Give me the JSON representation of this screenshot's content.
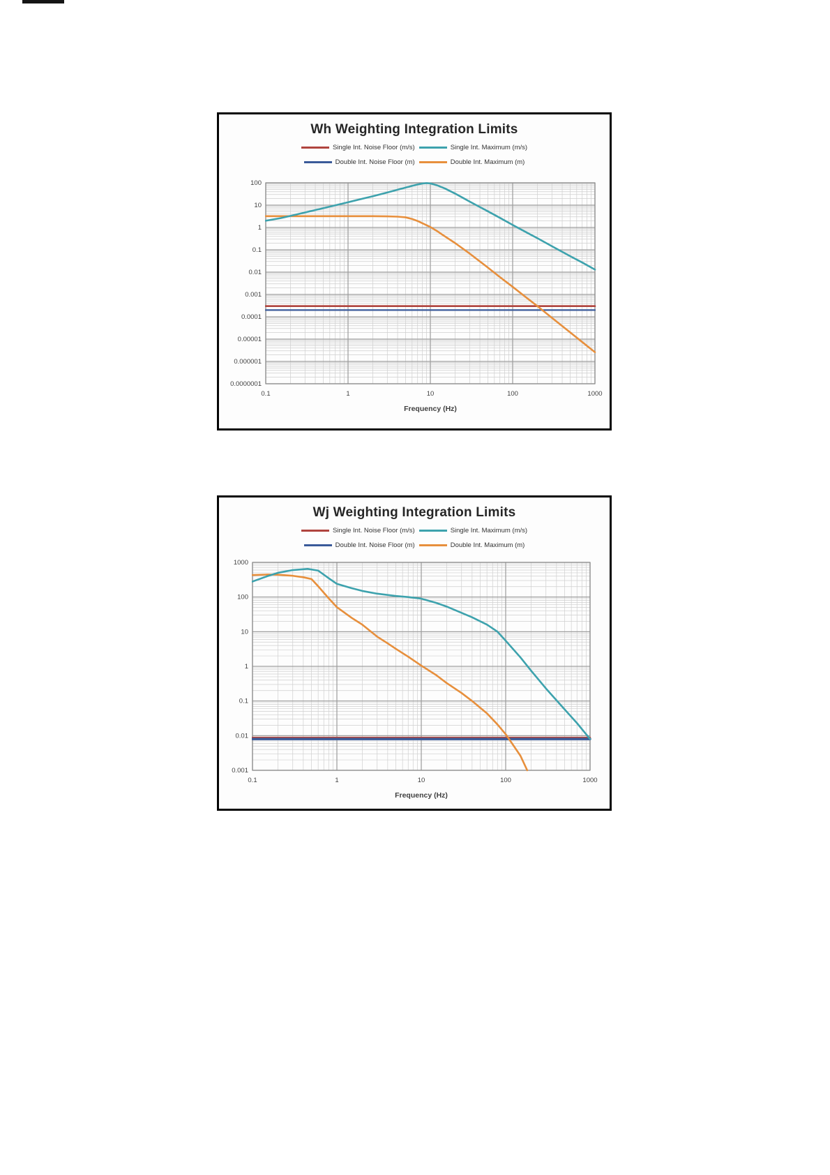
{
  "colors": {
    "single_noise": "#b0443e",
    "single_max": "#3da2ad",
    "double_noise": "#3a5a99",
    "double_max": "#e78f3c",
    "grid_minor": "#cfcfcf",
    "grid_major": "#9e9e9e",
    "plot_border": "#8a8a8a",
    "title_text": "#262626",
    "tick_text": "#3f3f3f"
  },
  "chart_data": [
    {
      "type": "line",
      "title": "Wh Weighting Integration Limits",
      "xlabel": "Frequency (Hz)",
      "xlim": [
        0.1,
        1000
      ],
      "ylim": [
        1e-07,
        100
      ],
      "x_ticks": [
        "0.1",
        "1",
        "10",
        "100",
        "1000"
      ],
      "y_ticks": [
        "100",
        "10",
        "1",
        "0.1",
        "0.01",
        "0.001",
        "0.0001",
        "0.00001",
        "0.000001",
        "0.0000001"
      ],
      "grid": "log-log, minor decades shown",
      "legend_position": "top-center, two rows",
      "legend": [
        {
          "label": "Single Int. Noise Floor (m/s)",
          "color": "#b0443e"
        },
        {
          "label": "Single Int. Maximum (m/s)",
          "color": "#3da2ad"
        },
        {
          "label": "Double Int. Noise Floor (m)",
          "color": "#3a5a99"
        },
        {
          "label": "Double Int. Maximum (m)",
          "color": "#e78f3c"
        }
      ],
      "series": [
        {
          "name": "Single Int. Noise Floor (m/s)",
          "color": "#b0443e",
          "stroke_width": 2.6,
          "points": [
            [
              0.1,
              0.0003
            ],
            [
              1000,
              0.0003
            ]
          ]
        },
        {
          "name": "Double Int. Noise Floor (m)",
          "color": "#3a5a99",
          "stroke_width": 2.3,
          "points": [
            [
              0.1,
              0.0002
            ],
            [
              1000,
              0.0002
            ]
          ]
        },
        {
          "name": "Double Int. Maximum (m)",
          "color": "#e78f3c",
          "stroke_width": 2.6,
          "points": [
            [
              0.1,
              3.2
            ],
            [
              1,
              3.2
            ],
            [
              2,
              3.2
            ],
            [
              3,
              3.15
            ],
            [
              4,
              3.05
            ],
            [
              5,
              2.85
            ],
            [
              6,
              2.4
            ],
            [
              7,
              1.95
            ],
            [
              8,
              1.55
            ],
            [
              10,
              1.05
            ],
            [
              12,
              0.7
            ],
            [
              15,
              0.4
            ],
            [
              20,
              0.2
            ],
            [
              30,
              0.068
            ],
            [
              50,
              0.016
            ],
            [
              70,
              0.006
            ],
            [
              100,
              0.0022
            ],
            [
              150,
              0.00068
            ],
            [
              200,
              0.0003
            ],
            [
              300,
              9e-05
            ],
            [
              500,
              2e-05
            ],
            [
              700,
              7.4e-06
            ],
            [
              1000,
              2.6e-06
            ]
          ]
        },
        {
          "name": "Single Int. Maximum (m/s)",
          "color": "#3da2ad",
          "stroke_width": 2.6,
          "points": [
            [
              0.1,
              2
            ],
            [
              0.15,
              2.6
            ],
            [
              0.2,
              3.3
            ],
            [
              0.3,
              4.7
            ],
            [
              0.5,
              7.3
            ],
            [
              0.7,
              9.8
            ],
            [
              1,
              13.5
            ],
            [
              1.5,
              19.5
            ],
            [
              2,
              25
            ],
            [
              3,
              37
            ],
            [
              4,
              49
            ],
            [
              5,
              61
            ],
            [
              6,
              73
            ],
            [
              7,
              84
            ],
            [
              8,
              93
            ],
            [
              9,
              97
            ],
            [
              10,
              94
            ],
            [
              12,
              78
            ],
            [
              15,
              56
            ],
            [
              20,
              33
            ],
            [
              25,
              21
            ],
            [
              30,
              14.5
            ],
            [
              40,
              8.2
            ],
            [
              50,
              5.3
            ],
            [
              70,
              2.7
            ],
            [
              100,
              1.3
            ],
            [
              150,
              0.58
            ],
            [
              200,
              0.33
            ],
            [
              300,
              0.145
            ],
            [
              500,
              0.052
            ],
            [
              700,
              0.027
            ],
            [
              1000,
              0.013
            ]
          ]
        }
      ]
    },
    {
      "type": "line",
      "title": "Wj Weighting Integration Limits",
      "xlabel": "Frequency (Hz)",
      "xlim": [
        0.1,
        1000
      ],
      "ylim": [
        0.001,
        1000
      ],
      "x_ticks": [
        "0.1",
        "1",
        "10",
        "100",
        "1000"
      ],
      "y_ticks": [
        "1000",
        "100",
        "10",
        "1",
        "0.1",
        "0.01",
        "0.001"
      ],
      "grid": "log-log, minor decades shown",
      "legend_position": "top-center, two rows",
      "legend": [
        {
          "label": "Single Int. Noise Floor (m/s)",
          "color": "#b0443e"
        },
        {
          "label": "Single Int. Maximum (m/s)",
          "color": "#3da2ad"
        },
        {
          "label": "Double Int. Noise Floor (m)",
          "color": "#3a5a99"
        },
        {
          "label": "Double Int. Maximum (m)",
          "color": "#e78f3c"
        }
      ],
      "series": [
        {
          "name": "Single Int. Noise Floor (m/s)",
          "color": "#b0443e",
          "stroke_width": 2.5,
          "points": [
            [
              0.1,
              0.0088
            ],
            [
              1000,
              0.0088
            ]
          ]
        },
        {
          "name": "Double Int. Noise Floor (m)",
          "color": "#3a5a99",
          "stroke_width": 3.4,
          "points": [
            [
              0.1,
              0.008
            ],
            [
              1000,
              0.008
            ]
          ]
        },
        {
          "name": "Double Int. Maximum (m)",
          "color": "#e78f3c",
          "stroke_width": 2.6,
          "points": [
            [
              0.1,
              430
            ],
            [
              0.15,
              445
            ],
            [
              0.2,
              440
            ],
            [
              0.3,
              410
            ],
            [
              0.4,
              372
            ],
            [
              0.5,
              330
            ],
            [
              0.6,
              205
            ],
            [
              0.7,
              133
            ],
            [
              0.8,
              92
            ],
            [
              1,
              51
            ],
            [
              1.5,
              25
            ],
            [
              2,
              16
            ],
            [
              3,
              7.2
            ],
            [
              4,
              4.6
            ],
            [
              5,
              3.2
            ],
            [
              7,
              1.9
            ],
            [
              10,
              1.05
            ],
            [
              15,
              0.56
            ],
            [
              20,
              0.33
            ],
            [
              30,
              0.17
            ],
            [
              40,
              0.1
            ],
            [
              60,
              0.044
            ],
            [
              80,
              0.021
            ],
            [
              100,
              0.011
            ],
            [
              120,
              0.0058
            ],
            [
              150,
              0.0026
            ],
            [
              180,
              0.001
            ]
          ]
        },
        {
          "name": "Single Int. Maximum (m/s)",
          "color": "#3da2ad",
          "stroke_width": 2.6,
          "points": [
            [
              0.1,
              280
            ],
            [
              0.15,
              400
            ],
            [
              0.2,
              500
            ],
            [
              0.3,
              600
            ],
            [
              0.45,
              650
            ],
            [
              0.6,
              580
            ],
            [
              0.8,
              350
            ],
            [
              1,
              240
            ],
            [
              1.5,
              180
            ],
            [
              2,
              150
            ],
            [
              3,
              125
            ],
            [
              5,
              107
            ],
            [
              7,
              100
            ],
            [
              10,
              90
            ],
            [
              15,
              68
            ],
            [
              20,
              53
            ],
            [
              30,
              35
            ],
            [
              40,
              26
            ],
            [
              60,
              16
            ],
            [
              80,
              10
            ],
            [
              100,
              5.5
            ],
            [
              150,
              1.8
            ],
            [
              200,
              0.75
            ],
            [
              300,
              0.23
            ],
            [
              500,
              0.057
            ],
            [
              700,
              0.023
            ],
            [
              1000,
              0.008
            ]
          ]
        }
      ]
    }
  ]
}
